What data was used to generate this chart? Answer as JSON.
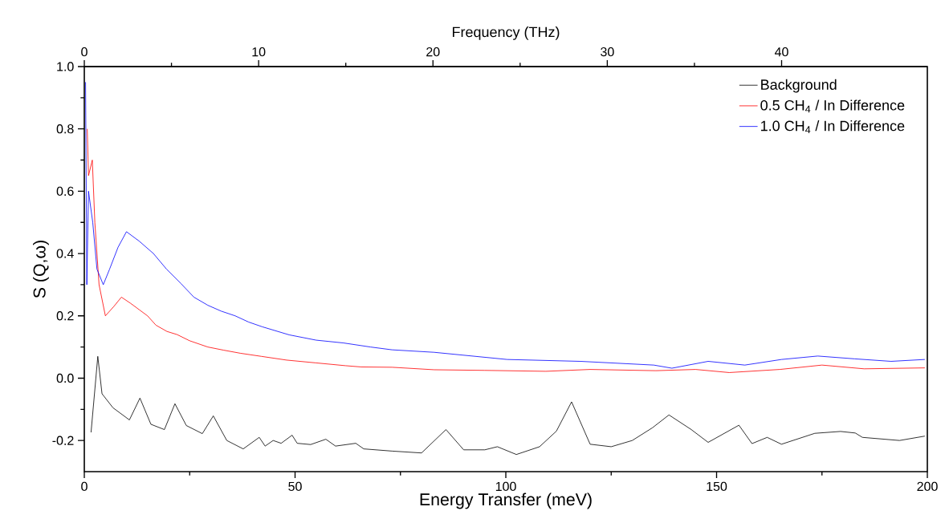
{
  "chart_data": {
    "type": "line",
    "xlabel": "Energy Transfer (meV)",
    "ylabel": "S (Q,ω)",
    "x2label": "Frequency (THz)",
    "xlim": [
      0,
      200
    ],
    "xticks": [
      0,
      50,
      100,
      150,
      200
    ],
    "x2lim": [
      0,
      48.36
    ],
    "x2ticks": [
      0,
      10,
      20,
      30,
      40
    ],
    "ylim": [
      -0.3,
      1.0
    ],
    "yticks": [
      {
        "value": -0.2,
        "label": "-0.2"
      },
      {
        "value": 0.0,
        "label": "0.0"
      },
      {
        "value": 0.2,
        "label": "0.2"
      },
      {
        "value": 0.4,
        "label": "0.4"
      },
      {
        "value": 0.6,
        "label": "0.6"
      },
      {
        "value": 0.8,
        "label": "0.8"
      },
      {
        "value": 1.0,
        "label": "1.0"
      }
    ],
    "legend": "top right",
    "grid": false,
    "series": [
      {
        "name": "Background",
        "color": "#000000",
        "x": [
          1.6,
          3.2,
          4.2,
          6.8,
          10.7,
          13.2,
          15.8,
          19,
          21.5,
          24.2,
          28,
          30.6,
          33.8,
          37.7,
          41.5,
          42.9,
          44.8,
          46.7,
          49.3,
          50.5,
          53.7,
          57.3,
          59.6,
          64.4,
          66.3,
          73,
          80,
          85.8,
          90,
          95,
          98,
          102.5,
          108,
          112,
          115.6,
          120,
          125,
          130,
          134.8,
          138.7,
          144,
          148,
          155.3,
          158.4,
          162,
          165.4,
          173.3,
          179.4,
          182.9,
          184.6,
          193.4,
          199.4
        ],
        "values": [
          -0.174,
          0.07,
          -0.05,
          -0.095,
          -0.134,
          -0.064,
          -0.148,
          -0.165,
          -0.082,
          -0.152,
          -0.178,
          -0.121,
          -0.2,
          -0.227,
          -0.19,
          -0.218,
          -0.2,
          -0.209,
          -0.183,
          -0.209,
          -0.213,
          -0.196,
          -0.218,
          -0.209,
          -0.227,
          -0.234,
          -0.24,
          -0.165,
          -0.23,
          -0.23,
          -0.22,
          -0.245,
          -0.22,
          -0.17,
          -0.076,
          -0.212,
          -0.22,
          -0.2,
          -0.159,
          -0.118,
          -0.165,
          -0.206,
          -0.151,
          -0.21,
          -0.19,
          -0.212,
          -0.177,
          -0.171,
          -0.176,
          -0.19,
          -0.2,
          -0.186
        ]
      },
      {
        "name": "0.5 CH$_{4}$ / In Difference",
        "color": "#ff0000",
        "x": [
          0.7,
          1,
          1.9,
          2.5,
          3.5,
          5,
          7,
          8.8,
          11,
          13,
          15,
          17,
          19.6,
          22,
          25,
          29.3,
          33,
          37,
          42,
          48,
          55,
          62,
          65.7,
          73,
          83,
          95,
          109.5,
          120,
          135.6,
          145,
          153,
          165,
          175,
          185,
          199.4
        ],
        "values": [
          0.8,
          0.65,
          0.7,
          0.5,
          0.3,
          0.2,
          0.23,
          0.26,
          0.24,
          0.22,
          0.2,
          0.17,
          0.15,
          0.14,
          0.12,
          0.1,
          0.09,
          0.08,
          0.07,
          0.058,
          0.049,
          0.04,
          0.036,
          0.035,
          0.027,
          0.025,
          0.022,
          0.028,
          0.024,
          0.028,
          0.018,
          0.028,
          0.042,
          0.03,
          0.033
        ]
      },
      {
        "name": "1.0 CH$_{4}$ / In Difference",
        "color": "#0000ff",
        "x": [
          0.3,
          0.6,
          1,
          2,
          3,
          4.5,
          6,
          8,
          10,
          13,
          16.4,
          19.5,
          22.9,
          26,
          29.3,
          32.5,
          35.8,
          39,
          42.2,
          48.6,
          55,
          61.5,
          67.9,
          73,
          83,
          100.3,
          117.7,
          135.1,
          139.4,
          148,
          156.7,
          165.4,
          174,
          182.8,
          191.4,
          199.4
        ],
        "values": [
          0.95,
          0.3,
          0.6,
          0.5,
          0.35,
          0.3,
          0.35,
          0.42,
          0.47,
          0.44,
          0.4,
          0.35,
          0.304,
          0.26,
          0.234,
          0.215,
          0.2,
          0.18,
          0.165,
          0.139,
          0.122,
          0.113,
          0.1,
          0.091,
          0.083,
          0.06,
          0.054,
          0.042,
          0.032,
          0.054,
          0.042,
          0.06,
          0.071,
          0.062,
          0.054,
          0.06
        ]
      }
    ]
  }
}
